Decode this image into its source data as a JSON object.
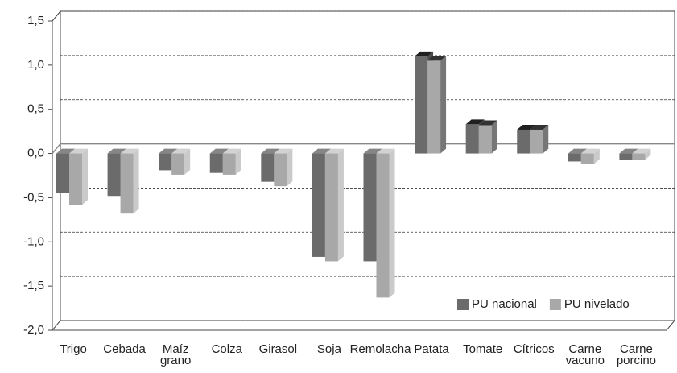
{
  "chart_data": {
    "type": "bar3d",
    "categories": [
      "Trigo",
      "Cebada",
      "Maíz grano",
      "Colza",
      "Girasol",
      "Soja",
      "Remolacha",
      "Patata",
      "Tomate",
      "Cítricos",
      "Carne vacuno",
      "Carne porcino"
    ],
    "series": [
      {
        "name": "PU nacional",
        "color": "#6b6b6b",
        "values": [
          -0.45,
          -0.48,
          -0.19,
          -0.22,
          -0.32,
          -1.17,
          -1.22,
          1.1,
          0.33,
          0.27,
          -0.09,
          -0.07
        ]
      },
      {
        "name": "PU nivelado",
        "color": "#a8a8a8",
        "values": [
          -0.58,
          -0.68,
          -0.24,
          -0.24,
          -0.37,
          -1.22,
          -1.63,
          1.05,
          0.32,
          0.27,
          -0.12,
          -0.07
        ]
      }
    ],
    "ylim": [
      -2.0,
      1.5
    ],
    "yticks": [
      {
        "value": -2.0,
        "label": "-2,0"
      },
      {
        "value": -1.5,
        "label": "-1,5"
      },
      {
        "value": -1.0,
        "label": "-1,0"
      },
      {
        "value": -0.5,
        "label": "-0,5"
      },
      {
        "value": 0.0,
        "label": "0,0"
      },
      {
        "value": 0.5,
        "label": "0,5"
      },
      {
        "value": 1.0,
        "label": "1,0"
      },
      {
        "value": 1.5,
        "label": "1,5"
      }
    ],
    "grid": true,
    "legend": "lower right"
  }
}
